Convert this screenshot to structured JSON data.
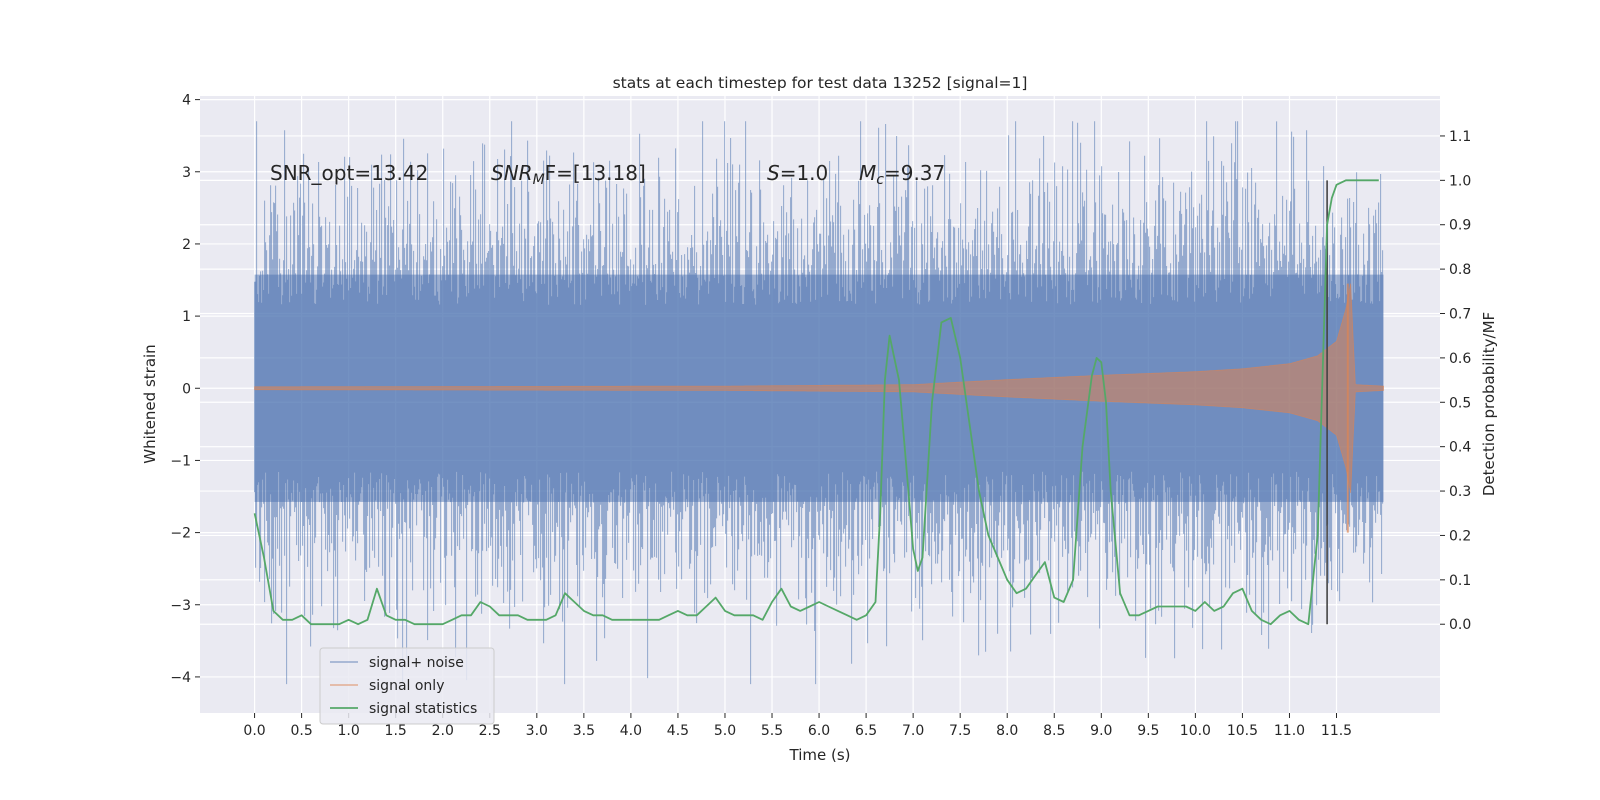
{
  "chart_data": {
    "type": "line",
    "title": "stats at each timestep for test data 13252 [signal=1]",
    "xlabel": "Time (s)",
    "ylabel": "Whitened strain",
    "ylabel_right": "Detection probability/MF",
    "xlim": [
      -0.58,
      12.6
    ],
    "ylim": [
      -4.5,
      4.05
    ],
    "ylim_right": [
      -0.2,
      1.19
    ],
    "x_ticks": [
      "0.0",
      "0.5",
      "1.0",
      "1.5",
      "2.0",
      "2.5",
      "3.0",
      "3.5",
      "4.0",
      "4.5",
      "5.0",
      "5.5",
      "6.0",
      "6.5",
      "7.0",
      "7.5",
      "8.0",
      "8.5",
      "9.0",
      "9.5",
      "10.0",
      "10.5",
      "11.0",
      "11.5"
    ],
    "y_ticks": [
      "4",
      "3",
      "2",
      "1",
      "0",
      "−1",
      "−2",
      "−3",
      "−4"
    ],
    "y_ticks_right": [
      "1.1",
      "1.0",
      "0.9",
      "0.8",
      "0.7",
      "0.6",
      "0.5",
      "0.4",
      "0.3",
      "0.2",
      "0.1",
      "0.0"
    ],
    "grid": true,
    "legend_location": "lower left",
    "annotations": [
      {
        "prefix": "SNR_opt=13.42",
        "italic": "",
        "sub": "",
        "suffix": ""
      },
      {
        "prefix": "",
        "italic": "SNR",
        "sub": "M",
        "suffix": "F=[13.18]"
      },
      {
        "prefix": "",
        "italic": "S",
        "sub": "",
        "suffix": "=1.0"
      },
      {
        "prefix": "",
        "italic": "M",
        "sub": "c",
        "suffix": "=9.37"
      }
    ],
    "vertical_marker_x": 11.4,
    "series": [
      {
        "name": "signal+ noise",
        "color": "#4c72b0",
        "axis": "left",
        "x_range": [
          0.0,
          12.0
        ],
        "envelope": {
          "upper_typical": 2.1,
          "upper_max": 3.7,
          "lower_typical": -2.1,
          "lower_min": -4.1
        }
      },
      {
        "name": "signal only",
        "color": "#dd8452",
        "axis": "left",
        "x": [
          0.0,
          5.0,
          7.0,
          8.0,
          9.0,
          10.0,
          10.5,
          11.0,
          11.3,
          11.5,
          11.6,
          11.65,
          11.7,
          12.0
        ],
        "amplitude": [
          0.02,
          0.03,
          0.05,
          0.12,
          0.18,
          0.23,
          0.27,
          0.34,
          0.45,
          0.65,
          1.1,
          1.45,
          0.05,
          0.03
        ]
      },
      {
        "name": "signal statistics",
        "color": "#55a868",
        "axis": "right",
        "x": [
          0.0,
          0.1,
          0.2,
          0.3,
          0.4,
          0.5,
          0.6,
          0.7,
          0.8,
          0.9,
          1.0,
          1.1,
          1.2,
          1.3,
          1.4,
          1.5,
          1.6,
          1.7,
          1.8,
          1.9,
          2.0,
          2.1,
          2.2,
          2.3,
          2.4,
          2.5,
          2.6,
          2.7,
          2.8,
          2.9,
          3.0,
          3.1,
          3.2,
          3.3,
          3.4,
          3.5,
          3.6,
          3.7,
          3.8,
          3.9,
          4.0,
          4.1,
          4.2,
          4.3,
          4.4,
          4.5,
          4.6,
          4.7,
          4.8,
          4.9,
          5.0,
          5.1,
          5.2,
          5.3,
          5.4,
          5.5,
          5.6,
          5.7,
          5.8,
          5.9,
          6.0,
          6.1,
          6.2,
          6.3,
          6.4,
          6.5,
          6.6,
          6.65,
          6.7,
          6.75,
          6.85,
          6.95,
          7.0,
          7.05,
          7.1,
          7.2,
          7.3,
          7.4,
          7.5,
          7.6,
          7.7,
          7.8,
          7.9,
          8.0,
          8.1,
          8.2,
          8.3,
          8.4,
          8.5,
          8.6,
          8.7,
          8.8,
          8.9,
          8.95,
          9.0,
          9.05,
          9.1,
          9.2,
          9.3,
          9.4,
          9.5,
          9.6,
          9.7,
          9.8,
          9.9,
          10.0,
          10.1,
          10.2,
          10.3,
          10.4,
          10.5,
          10.6,
          10.7,
          10.8,
          10.9,
          11.0,
          11.1,
          11.2,
          11.3,
          11.35,
          11.4,
          11.45,
          11.5,
          11.6,
          11.7,
          11.8,
          11.9,
          11.95
        ],
        "values": [
          0.25,
          0.15,
          0.03,
          0.01,
          0.01,
          0.02,
          0.0,
          0.0,
          0.0,
          0.0,
          0.01,
          0.0,
          0.01,
          0.08,
          0.02,
          0.01,
          0.01,
          0.0,
          0.0,
          0.0,
          0.0,
          0.01,
          0.02,
          0.02,
          0.05,
          0.04,
          0.02,
          0.02,
          0.02,
          0.01,
          0.01,
          0.01,
          0.02,
          0.07,
          0.05,
          0.03,
          0.02,
          0.02,
          0.01,
          0.01,
          0.01,
          0.01,
          0.01,
          0.01,
          0.02,
          0.03,
          0.02,
          0.02,
          0.04,
          0.06,
          0.03,
          0.02,
          0.02,
          0.02,
          0.01,
          0.05,
          0.08,
          0.04,
          0.03,
          0.04,
          0.05,
          0.04,
          0.03,
          0.02,
          0.01,
          0.02,
          0.05,
          0.25,
          0.55,
          0.65,
          0.55,
          0.3,
          0.17,
          0.12,
          0.15,
          0.5,
          0.68,
          0.69,
          0.6,
          0.45,
          0.3,
          0.2,
          0.15,
          0.1,
          0.07,
          0.08,
          0.11,
          0.14,
          0.06,
          0.05,
          0.1,
          0.4,
          0.56,
          0.6,
          0.59,
          0.5,
          0.3,
          0.07,
          0.02,
          0.02,
          0.03,
          0.04,
          0.04,
          0.04,
          0.04,
          0.03,
          0.05,
          0.03,
          0.04,
          0.07,
          0.08,
          0.03,
          0.01,
          0.0,
          0.02,
          0.03,
          0.01,
          0.0,
          0.2,
          0.55,
          0.9,
          0.96,
          0.99,
          1.0,
          1.0,
          1.0,
          1.0,
          1.0
        ]
      }
    ]
  }
}
